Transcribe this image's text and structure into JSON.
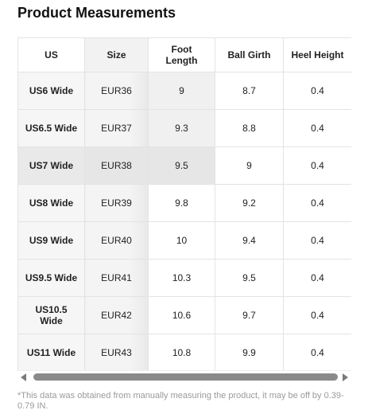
{
  "page_title": "Product Measurements",
  "table": {
    "headers": [
      "US",
      "Size",
      "Foot Length",
      "Ball Girth",
      "Heel Height"
    ],
    "rows": [
      [
        "US6 Wide",
        "EUR36",
        "9",
        "8.7",
        "0.4"
      ],
      [
        "US6.5 Wide",
        "EUR37",
        "9.3",
        "8.8",
        "0.4"
      ],
      [
        "US7 Wide",
        "EUR38",
        "9.5",
        "9",
        "0.4"
      ],
      [
        "US8 Wide",
        "EUR39",
        "9.8",
        "9.2",
        "0.4"
      ],
      [
        "US9 Wide",
        "EUR40",
        "10",
        "9.4",
        "0.4"
      ],
      [
        "US9.5 Wide",
        "EUR41",
        "10.3",
        "9.5",
        "0.4"
      ],
      [
        "US10.5 Wide",
        "EUR42",
        "10.6",
        "9.7",
        "0.4"
      ],
      [
        "US11 Wide",
        "EUR43",
        "10.8",
        "9.9",
        "0.4"
      ]
    ]
  },
  "footnote": "*This data was obtained from manually measuring the product, it may be off by 0.39-0.79 IN."
}
